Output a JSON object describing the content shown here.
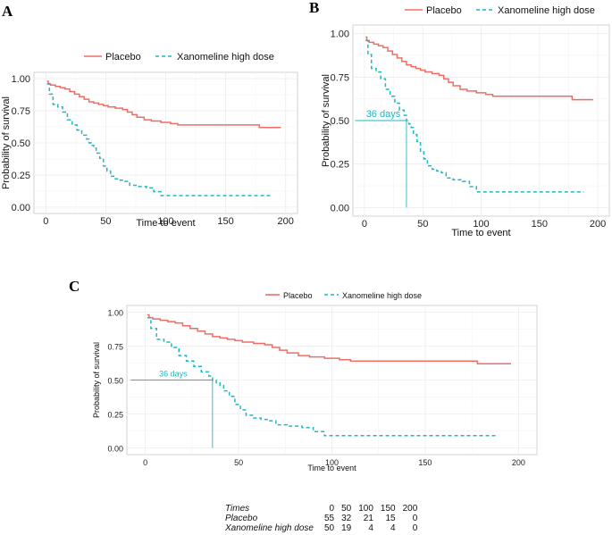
{
  "colors": {
    "placebo": "#ee6e66",
    "xanomeline": "#1fb7c2",
    "grid": "#ececec",
    "frame": "#c8c8c8"
  },
  "panels": [
    {
      "letter": "A",
      "show_median": false,
      "median_label": "",
      "median_x": 36,
      "median_y": 0.5
    },
    {
      "letter": "B",
      "show_median": true,
      "median_label": "36 days",
      "median_x": 36,
      "median_y": 0.5
    },
    {
      "letter": "C",
      "show_median": true,
      "median_label": "36 days",
      "median_x": 36,
      "median_y": 0.5
    }
  ],
  "chart_data": {
    "type": "line",
    "subtype": "step",
    "title": "",
    "xlabel": "Time to event",
    "ylabel": "Probability of survival",
    "xlim": [
      0,
      200
    ],
    "ylim": [
      0,
      1
    ],
    "xticks": [
      0,
      50,
      100,
      150,
      200
    ],
    "yticks": [
      0.0,
      0.25,
      0.5,
      0.75,
      1.0
    ],
    "ytick_labels": [
      "0.00",
      "0.25",
      "0.50",
      "0.75",
      "1.00"
    ],
    "legend_position": "top",
    "series": [
      {
        "name": "Placebo",
        "line_style": "solid",
        "x": [
          1,
          2,
          4,
          8,
          12,
          16,
          20,
          24,
          28,
          32,
          36,
          40,
          44,
          48,
          52,
          58,
          64,
          68,
          72,
          76,
          82,
          88,
          96,
          104,
          110,
          120,
          140,
          160,
          176,
          178,
          196
        ],
        "y": [
          0.98,
          0.96,
          0.95,
          0.94,
          0.93,
          0.92,
          0.9,
          0.88,
          0.86,
          0.84,
          0.82,
          0.81,
          0.8,
          0.79,
          0.78,
          0.77,
          0.76,
          0.74,
          0.72,
          0.7,
          0.68,
          0.67,
          0.66,
          0.65,
          0.64,
          0.64,
          0.64,
          0.64,
          0.64,
          0.62,
          0.62
        ]
      },
      {
        "name": "Xanomeline high dose",
        "line_style": "dashed",
        "x": [
          1,
          3,
          6,
          10,
          14,
          18,
          22,
          26,
          30,
          34,
          36,
          38,
          40,
          42,
          45,
          48,
          51,
          54,
          58,
          62,
          66,
          70,
          76,
          84,
          90,
          96,
          188
        ],
        "y": [
          0.96,
          0.88,
          0.8,
          0.78,
          0.74,
          0.68,
          0.64,
          0.6,
          0.56,
          0.53,
          0.5,
          0.48,
          0.46,
          0.42,
          0.38,
          0.32,
          0.28,
          0.24,
          0.22,
          0.21,
          0.2,
          0.17,
          0.16,
          0.15,
          0.12,
          0.09,
          0.09
        ]
      }
    ]
  },
  "risk_table": {
    "header": "Times",
    "times": [
      "0",
      "50",
      "100",
      "150",
      "200"
    ],
    "rows": [
      {
        "label": "Placebo",
        "values": [
          "55",
          "32",
          "21",
          "15",
          "0"
        ]
      },
      {
        "label": "Xanomeline high dose",
        "values": [
          "50",
          "19",
          "4",
          "4",
          "0"
        ]
      }
    ]
  }
}
